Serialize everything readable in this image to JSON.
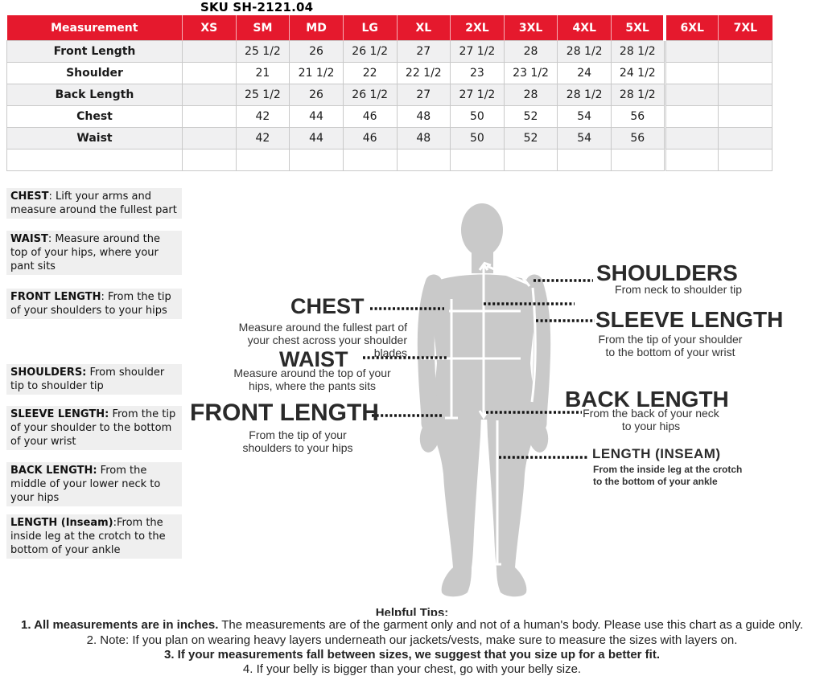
{
  "sku_title": "SKU SH-2121.04",
  "size_table": {
    "header_bg": "#e5192d",
    "alt_row_bg": "#f0f0f1",
    "border_color": "#c9c9c9",
    "columns": [
      "Measurement",
      "XS",
      "SM",
      "MD",
      "LG",
      "XL",
      "2XL",
      "3XL",
      "4XL",
      "5XL",
      "6XL",
      "7XL"
    ],
    "rows": [
      {
        "label": "Front Length",
        "values": [
          "",
          "25 1/2",
          "26",
          "26 1/2",
          "27",
          "27 1/2",
          "28",
          "28 1/2",
          "28 1/2",
          "",
          ""
        ]
      },
      {
        "label": "Shoulder",
        "values": [
          "",
          "21",
          "21 1/2",
          "22",
          "22 1/2",
          "23",
          "23 1/2",
          "24",
          "24 1/2",
          "",
          ""
        ]
      },
      {
        "label": "Back Length",
        "values": [
          "",
          "25 1/2",
          "26",
          "26 1/2",
          "27",
          "27 1/2",
          "28",
          "28 1/2",
          "28 1/2",
          "",
          ""
        ]
      },
      {
        "label": "Chest",
        "values": [
          "",
          "42",
          "44",
          "46",
          "48",
          "50",
          "52",
          "54",
          "56",
          "",
          ""
        ]
      },
      {
        "label": "Waist",
        "values": [
          "",
          "42",
          "44",
          "46",
          "48",
          "50",
          "52",
          "54",
          "56",
          "",
          ""
        ]
      },
      {
        "label": "",
        "values": [
          "",
          "",
          "",
          "",
          "",
          "",
          "",
          "",
          "",
          "",
          ""
        ]
      }
    ]
  },
  "definitions": [
    {
      "term": "CHEST",
      "text": ": Lift your arms  and measure around the fullest part"
    },
    {
      "term": "WAIST",
      "text": ":  Measure around the top of your hips, where your pant sits"
    },
    {
      "term": "FRONT LENGTH",
      "text": ": From the tip of your shoulders to your hips"
    },
    {
      "term": "SHOULDERS:",
      "text": " From shoulder tip to shoulder tip"
    },
    {
      "term": "SLEEVE LENGTH:",
      "text": " From the tip of your shoulder to the bottom of your wrist"
    },
    {
      "term": "BACK LENGTH:",
      "text": " From the middle of your lower neck to your hips"
    },
    {
      "term": "LENGTH (Inseam)",
      "text": ":From the inside leg at the crotch to the bottom of your ankle"
    }
  ],
  "diagram": {
    "body_color": "#c9c9c9",
    "labels": {
      "chest": {
        "title": "CHEST",
        "caption": "Measure around the fullest part of your chest across your shoulder blades"
      },
      "waist": {
        "title": "WAIST",
        "caption": "Measure around the top of your hips, where the pants sits"
      },
      "front_length": {
        "title": "FRONT LENGTH",
        "caption": "From the tip of your shoulders to your hips"
      },
      "shoulders": {
        "title": "SHOULDERS",
        "caption": "From neck to shoulder tip"
      },
      "sleeve_length": {
        "title": "SLEEVE LENGTH",
        "caption": "From the tip of your shoulder to the bottom of your wrist"
      },
      "back_length": {
        "title": "BACK LENGTH",
        "caption": "From the back of your neck to your hips"
      },
      "length_inseam": {
        "title": "LENGTH (INSEAM)",
        "caption": "From the inside leg at the crotch to the bottom of your ankle"
      }
    }
  },
  "tips": {
    "heading": "Helpful Tips:",
    "items": [
      {
        "bold": "1. All measurements are in inches.",
        "text": " The measurements are of the garment only and not of a human's body. Please use this chart as a guide only."
      },
      {
        "bold": "",
        "text": "2. Note: If you plan on wearing heavy layers underneath our jackets/vests, make sure to measure the sizes with layers on."
      },
      {
        "bold": "",
        "text": "3. If your measurements fall between sizes, we suggest that you size up for a better fit."
      },
      {
        "bold": "",
        "text": "4. If your belly is bigger than your chest, go with your belly size."
      }
    ]
  }
}
